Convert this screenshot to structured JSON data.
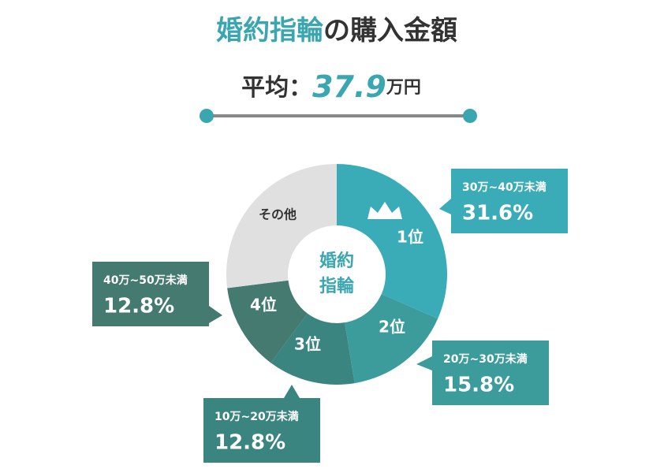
{
  "chart_data": {
    "type": "donut",
    "title_parts": [
      "婚約指輪",
      "の購入金額"
    ],
    "title_colors": [
      "#3aa6b0",
      "#333333"
    ],
    "average_label": "平均：",
    "average_value": 37.9,
    "average_unit": "万円",
    "center_label": [
      "婚約",
      "指輪"
    ],
    "categories": [
      "30万~40万未満",
      "20万~30万未満",
      "10万~20万未満",
      "40万~50万未満",
      "その他"
    ],
    "rank_labels": [
      "1位",
      "2位",
      "3位",
      "4位"
    ],
    "values": [
      31.6,
      15.8,
      12.8,
      12.8,
      27.0
    ],
    "value_labels": [
      "31.6%",
      "15.8%",
      "12.8%",
      "12.8%",
      null
    ],
    "colors": [
      "#3aacb8",
      "#3c9c9c",
      "#3a8580",
      "#457a70",
      "#e0e0e0"
    ]
  }
}
